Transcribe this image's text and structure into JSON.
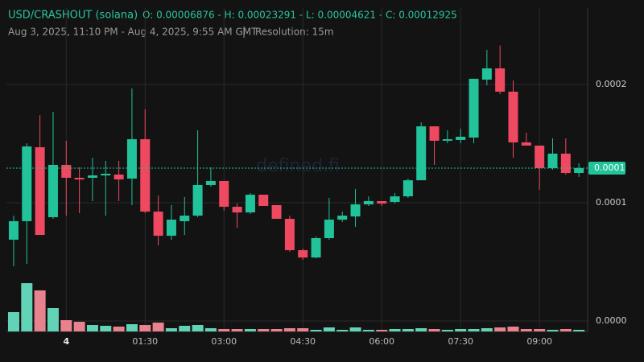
{
  "chart_data": {
    "type": "candlestick",
    "title": "USD/CRASHOUT (solana)",
    "summary": "O: 0.00006876 - H: 0.00023291 - L: 0.00004621 - C: 0.00012925",
    "date_range": "Aug 3, 2025, 11:10 PM - Aug 4, 2025, 9:55 AM GMT",
    "resolution": "Resolution: 15m",
    "watermark": "defined.fi",
    "categories": [
      null,
      null,
      null,
      null,
      "4",
      null,
      null,
      null,
      null,
      null,
      "01:30",
      null,
      null,
      null,
      null,
      null,
      "03:00",
      null,
      null,
      null,
      null,
      null,
      "04:30",
      null,
      null,
      null,
      null,
      null,
      "06:00",
      null,
      null,
      null,
      null,
      null,
      "07:30",
      null,
      null,
      null,
      null,
      null,
      "09:00",
      null,
      null,
      null
    ],
    "open": [
      6.876e-05,
      8.44e-05,
      0.0001469,
      8.78e-05,
      0.000132,
      0.0001211,
      0.0001211,
      0.0001231,
      0.0001238,
      0.0001204,
      0.0001537,
      9.25e-05,
      7.21e-05,
      8.44e-05,
      8.91e-05,
      0.000115,
      0.0001184,
      9.66e-05,
      9.18e-05,
      0.0001068,
      9.8e-05,
      8.64e-05,
      5.99e-05,
      5.37e-05,
      7.01e-05,
      8.57e-05,
      8.84e-05,
      9.86e-05,
      0.0001014,
      0.0001007,
      0.0001054,
      0.000119,
      0.0001646,
      0.0001524,
      0.0001531,
      0.0001551,
      0.0002041,
      0.0002136,
      0.0001939,
      0.000151,
      0.0001483,
      0.0001293,
      0.0001415,
      0.0001252
    ],
    "high": [
      8.91e-05,
      0.0001503,
      0.0001741,
      0.0001769,
      0.0001524,
      0.0001299,
      0.0001381,
      0.0001354,
      0.0001354,
      0.0001966,
      0.0001789,
      0.0001061,
      9.8e-05,
      0.0001048,
      0.0001612,
      0.0001299,
      0.0001184,
      9.93e-05,
      0.0001082,
      0.0001068,
      9.8e-05,
      8.91e-05,
      6.12e-05,
      7.14e-05,
      0.0001041,
      9.25e-05,
      0.0001116,
      0.0001054,
      0.0001014,
      0.0001082,
      0.0001204,
      0.000168,
      0.0001646,
      0.0001612,
      0.0001626,
      0.0002048,
      0.0002293,
      0.00023291,
      0.0002034,
      0.0001592,
      0.0001483,
      0.0001544,
      0.0001544,
      0.0001333
    ],
    "low": [
      4.621e-05,
      4.83e-05,
      7.28e-05,
      8.64e-05,
      8.91e-05,
      9.12e-05,
      0.0001014,
      8.91e-05,
      0.0001014,
      9.8e-05,
      9.12e-05,
      6.39e-05,
      6.87e-05,
      7.28e-05,
      8.78e-05,
      0.0001136,
      9.32e-05,
      7.89e-05,
      9.05e-05,
      9.73e-05,
      8.64e-05,
      5.85e-05,
      5.17e-05,
      5.31e-05,
      6.87e-05,
      8.37e-05,
      7.96e-05,
      9.73e-05,
      9.73e-05,
      9.93e-05,
      0.0001041,
      0.000119,
      0.000132,
      0.0001503,
      0.0001503,
      0.0001503,
      0.0001993,
      0.0001918,
      0.0001381,
      0.0001483,
      0.0001109,
      0.0001279,
      0.0001238,
      0.0001218
    ],
    "close": [
      8.44e-05,
      0.0001476,
      7.28e-05,
      0.000132,
      0.0001211,
      0.0001197,
      0.0001231,
      0.0001245,
      0.0001197,
      0.0001537,
      9.25e-05,
      7.21e-05,
      8.57e-05,
      8.91e-05,
      0.000115,
      0.0001184,
      9.66e-05,
      9.18e-05,
      0.0001068,
      9.73e-05,
      8.64e-05,
      5.99e-05,
      5.37e-05,
      7.01e-05,
      8.57e-05,
      8.91e-05,
      9.86e-05,
      0.0001014,
      9.93e-05,
      0.0001054,
      0.000119,
      0.0001646,
      0.0001524,
      0.0001537,
      0.0001558,
      0.0002048,
      0.0002136,
      0.0001939,
      0.000151,
      0.0001483,
      0.0001293,
      0.0001415,
      0.0001252,
      0.00012925
    ],
    "volume": [
      24,
      60,
      51,
      29,
      14,
      12,
      8,
      7,
      6,
      9,
      8,
      11,
      4,
      7,
      8,
      4,
      3,
      3,
      3,
      3,
      3,
      4,
      4,
      2,
      5,
      2,
      5,
      2,
      2,
      3,
      3,
      4,
      3,
      2,
      3,
      3,
      4,
      5,
      6,
      3,
      3,
      2,
      3,
      2
    ],
    "up_color": "#22c39a",
    "down_color": "#ef4961",
    "volume_up_color": "#62d3b6",
    "volume_down_color": "#e9828f",
    "ylim": [
      -8.8e-06,
      0.0002646
    ],
    "yticks": [
      {
        "value": 0,
        "label": "0.0000"
      },
      0.0001,
      0.0002
    ],
    "last_price": 0.00012925,
    "last_price_label": "0.0001",
    "grid": true
  }
}
